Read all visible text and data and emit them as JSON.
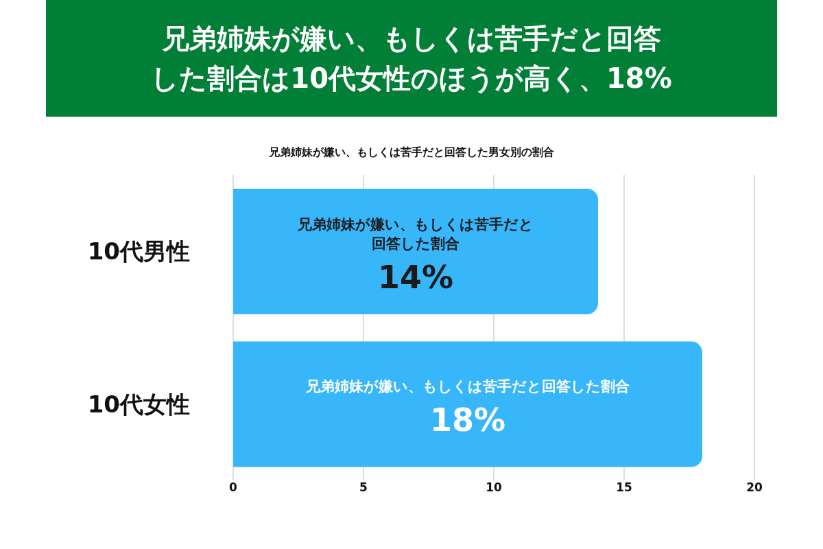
{
  "chart_data": {
    "type": "bar",
    "orientation": "horizontal",
    "title": "兄弟姉妹が嫌い、もしくは苦手だと回答した割合は10代女性のほうが高く、18%",
    "subtitle": "兄弟姉妹が嫌い、もしくは苦手だと回答した男女別の割合",
    "categories": [
      "10代男性",
      "10代女性"
    ],
    "values": [
      14,
      18
    ],
    "color": "#38b6fa",
    "value_labels": [
      "14%",
      "18%"
    ],
    "annotations": [
      "兄弟姉妹が嫌い、もしくは苦手だと回答した割合",
      "兄弟姉妹が嫌い、もしくは苦手だと回答した割合"
    ],
    "xlim": [
      0,
      20
    ],
    "xticks": [
      0,
      5,
      10,
      15,
      20
    ],
    "grid": "x"
  }
}
